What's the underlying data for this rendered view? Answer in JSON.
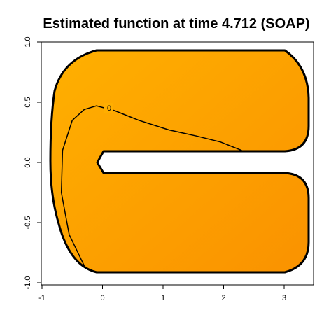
{
  "chart_data": {
    "type": "heatmap",
    "title": "Estimated function at time 4.712 (SOAP)",
    "xlabel": "",
    "ylabel": "",
    "xlim": [
      -1,
      3.5
    ],
    "ylim": [
      -1,
      1
    ],
    "x_ticks": [
      "-1",
      "0",
      "1",
      "2",
      "3"
    ],
    "y_ticks": [
      "-1.0",
      "-0.5",
      "0.0",
      "0.5",
      "1.0"
    ],
    "grid": false,
    "colors": {
      "fill_light": "#ffae00",
      "fill_dark": "#fb9500",
      "boundary": "#000000",
      "contour": "#000000"
    },
    "contour": {
      "level_label": "0",
      "points": [
        [
          -0.3,
          -0.86
        ],
        [
          -0.55,
          -0.6
        ],
        [
          -0.68,
          -0.25
        ],
        [
          -0.66,
          0.1
        ],
        [
          -0.5,
          0.35
        ],
        [
          -0.3,
          0.44
        ],
        [
          -0.1,
          0.47
        ],
        [
          0.2,
          0.43
        ],
        [
          0.6,
          0.35
        ],
        [
          1.1,
          0.27
        ],
        [
          1.55,
          0.22
        ],
        [
          1.95,
          0.17
        ],
        [
          2.3,
          0.1
        ]
      ]
    }
  }
}
